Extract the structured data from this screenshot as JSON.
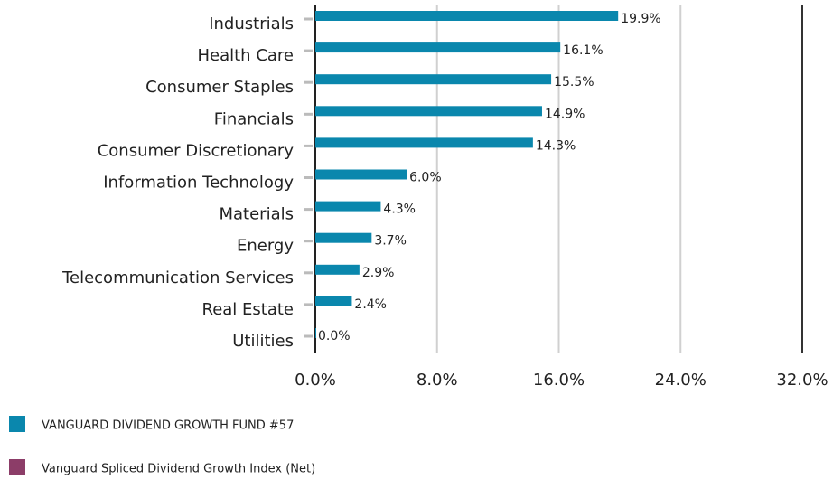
{
  "chart_data": {
    "type": "hbar",
    "categories": [
      "Industrials",
      "Health Care",
      "Consumer Staples",
      "Financials",
      "Consumer Discretionary",
      "Information Technology",
      "Materials",
      "Energy",
      "Telecommunication Services",
      "Real Estate",
      "Utilities"
    ],
    "series": [
      {
        "name": "VANGUARD DIVIDEND GROWTH FUND #57",
        "color": "#0a87ad",
        "values": [
          19.9,
          16.1,
          15.5,
          14.9,
          14.3,
          6.0,
          4.3,
          3.7,
          2.9,
          2.4,
          0.0
        ],
        "value_labels": [
          "19.9%",
          "16.1%",
          "15.5%",
          "14.9%",
          "14.3%",
          "6.0%",
          "4.3%",
          "3.7%",
          "2.9%",
          "2.4%",
          "0.0%"
        ]
      },
      {
        "name": "Vanguard Spliced Dividend Growth Index (Net)",
        "color": "#8c3d68",
        "values": [
          null,
          null,
          null,
          null,
          null,
          null,
          null,
          null,
          null,
          null,
          null
        ]
      }
    ],
    "xlim": [
      0,
      32
    ],
    "xticks": [
      {
        "value": 0,
        "label": "0.0%"
      },
      {
        "value": 8,
        "label": "8.0%"
      },
      {
        "value": 16,
        "label": "16.0%"
      },
      {
        "value": 24,
        "label": "24.0%"
      },
      {
        "value": 32,
        "label": "32.0%"
      }
    ],
    "grid": true
  }
}
